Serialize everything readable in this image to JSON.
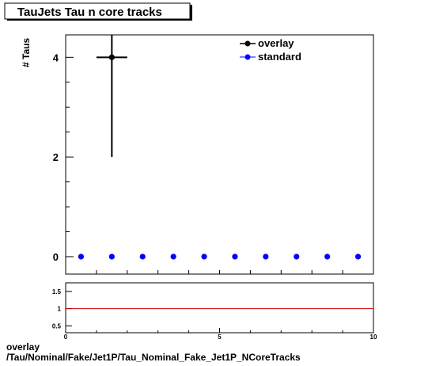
{
  "title": "TauJets Tau n core tracks",
  "footer": {
    "line1": "overlay",
    "line2": "/Tau/Nominal/Fake/Jet1P/Tau_Nominal_Fake_Jet1P_NCoreTracks"
  },
  "colors": {
    "overlay": "#000000",
    "standard": "#0000ff",
    "ratio_line": "#cc0000"
  },
  "chart_data": [
    {
      "type": "scatter",
      "ylabel": "# Taus",
      "xlim": [
        0,
        10
      ],
      "ylim": [
        -0.35,
        4.45
      ],
      "y_major_ticks": [
        0,
        2,
        4
      ],
      "y_minor_ticks": [
        0.5,
        1,
        1.5,
        2.5,
        3,
        3.5
      ],
      "legend_placement": "top-right",
      "series": [
        {
          "name": "overlay",
          "points": [
            {
              "x": 1.5,
              "y": 4,
              "xerr": 0.5,
              "yerr_low": 2,
              "yerr_high": 2
            }
          ]
        },
        {
          "name": "standard",
          "points": [
            {
              "x": 0.5,
              "y": 0
            },
            {
              "x": 1.5,
              "y": 0
            },
            {
              "x": 2.5,
              "y": 0
            },
            {
              "x": 3.5,
              "y": 0
            },
            {
              "x": 4.5,
              "y": 0
            },
            {
              "x": 5.5,
              "y": 0
            },
            {
              "x": 6.5,
              "y": 0
            },
            {
              "x": 7.5,
              "y": 0
            },
            {
              "x": 8.5,
              "y": 0
            },
            {
              "x": 9.5,
              "y": 0
            }
          ]
        }
      ]
    },
    {
      "type": "line",
      "xlim": [
        0,
        10
      ],
      "ylim": [
        0.3,
        1.75
      ],
      "x_ticks": [
        0,
        5,
        10
      ],
      "y_ticks": [
        0.5,
        1,
        1.5
      ],
      "y_tick_labels": [
        "0.5",
        "1",
        "1.5"
      ],
      "reference_line_y": 1
    }
  ]
}
